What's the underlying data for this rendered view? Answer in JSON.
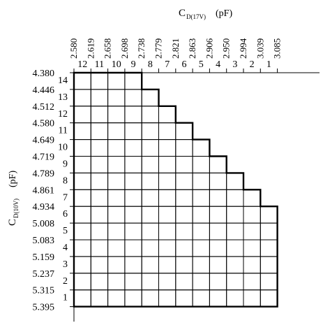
{
  "top_axis": {
    "label_main": "C",
    "label_sub": "D(17V)",
    "unit": "(pF)",
    "values": [
      "2.580",
      "2.619",
      "2.658",
      "2.698",
      "2.738",
      "2.779",
      "2.821",
      "2.863",
      "2.906",
      "2.950",
      "2.994",
      "3.039",
      "3.085"
    ],
    "indices": [
      "12",
      "11",
      "10",
      "9",
      "8",
      "7",
      "6",
      "5",
      "4",
      "3",
      "2",
      "1"
    ]
  },
  "left_axis": {
    "label_main": "C",
    "label_sub": "D(10V)",
    "unit": "(pF)",
    "values": [
      "4.380",
      "4.446",
      "4.512",
      "4.580",
      "4.649",
      "4.719",
      "4.789",
      "4.861",
      "4.934",
      "5.008",
      "5.083",
      "5.159",
      "5.237",
      "5.315",
      "5.395"
    ],
    "indices": [
      "14",
      "13",
      "12",
      "11",
      "10",
      "9",
      "8",
      "7",
      "6",
      "5",
      "4",
      "3",
      "2",
      "1"
    ]
  },
  "grid": {
    "columns": 12,
    "rows": 14,
    "staircase_right_col": [
      4,
      5,
      6,
      7,
      8,
      9,
      10,
      11,
      12,
      12,
      12,
      12,
      12,
      12
    ]
  }
}
